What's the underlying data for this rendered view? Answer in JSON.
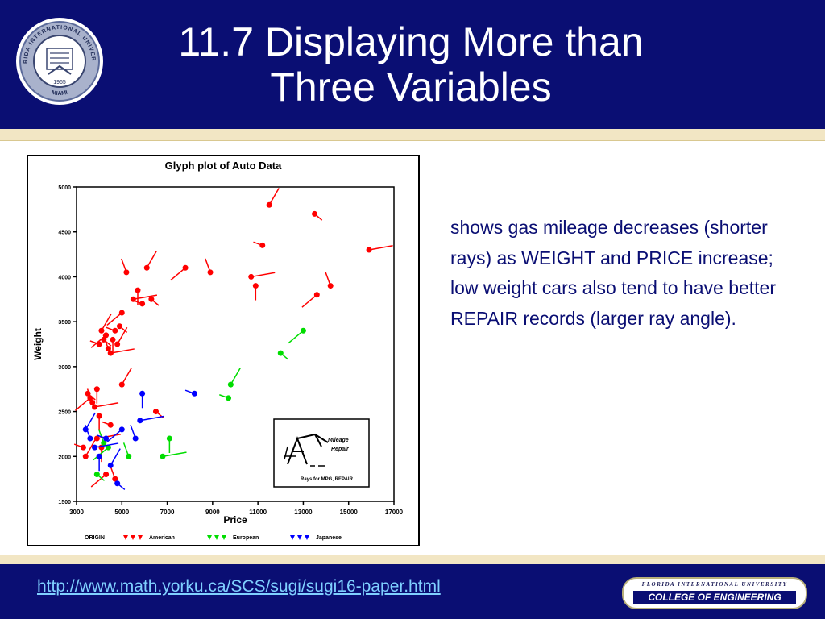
{
  "slide": {
    "title_line1": "11.7 Displaying More than",
    "title_line2": "Three Variables",
    "body_text": "shows gas mileage decreases (shorter rays) as WEIGHT and PRICE increase; low weight cars also tend to have better REPAIR records (larger ray angle).",
    "footer_link": "http://www.math.yorku.ca/SCS/sugi/sugi16-paper.html",
    "footer_logo_university": "FLORIDA INTERNATIONAL UNIVERSITY",
    "footer_logo_college": "COLLEGE OF ENGINEERING",
    "seal_text_top": "FLORIDA INTERNATIONAL UNIVERSITY",
    "seal_text_bottom": "MIAMI",
    "seal_year": "1965"
  },
  "colors": {
    "header_blue": "#0a0e73",
    "accent_cream": "#f2e6c4",
    "link_color": "#7fd0ff",
    "american": "#ff0000",
    "european": "#00dd00",
    "japanese": "#0000ff"
  },
  "chart_data": {
    "type": "scatter",
    "title": "Glyph plot of Auto Data",
    "xlabel": "Price",
    "ylabel": "Weight",
    "xlim": [
      3000,
      17000
    ],
    "ylim": [
      1500,
      5000
    ],
    "x_ticks": [
      3000,
      5000,
      7000,
      9000,
      11000,
      13000,
      15000,
      17000
    ],
    "y_ticks": [
      1500,
      2000,
      2500,
      3000,
      3500,
      4000,
      4500,
      5000
    ],
    "legend_placement": "bottom",
    "legend_label": "ORIGIN",
    "glyph_key": {
      "labels": [
        "Mileage",
        "Repair"
      ],
      "caption": "Rays for MPG, REPAIR"
    },
    "series": [
      {
        "name": "American",
        "color": "#ff0000",
        "points": [
          [
            3300,
            2100
          ],
          [
            3400,
            2000
          ],
          [
            3500,
            2700
          ],
          [
            3600,
            2650
          ],
          [
            3700,
            2600
          ],
          [
            3800,
            2550
          ],
          [
            3900,
            2750
          ],
          [
            4000,
            3250
          ],
          [
            4100,
            3400
          ],
          [
            4200,
            3300
          ],
          [
            4300,
            3350
          ],
          [
            4400,
            3200
          ],
          [
            4500,
            3150
          ],
          [
            4600,
            3300
          ],
          [
            4700,
            3400
          ],
          [
            4800,
            3250
          ],
          [
            4900,
            3450
          ],
          [
            5000,
            3600
          ],
          [
            5200,
            4050
          ],
          [
            5500,
            3750
          ],
          [
            5700,
            3850
          ],
          [
            5900,
            3700
          ],
          [
            6100,
            4100
          ],
          [
            6300,
            3750
          ],
          [
            7800,
            4100
          ],
          [
            8900,
            4050
          ],
          [
            10700,
            4000
          ],
          [
            10900,
            3900
          ],
          [
            11200,
            4350
          ],
          [
            11500,
            4800
          ],
          [
            13500,
            4700
          ],
          [
            13600,
            3800
          ],
          [
            14200,
            3900
          ],
          [
            15900,
            4300
          ],
          [
            4000,
            2450
          ],
          [
            4500,
            2350
          ],
          [
            5000,
            2800
          ],
          [
            6500,
            2500
          ],
          [
            4300,
            1800
          ],
          [
            4700,
            1750
          ],
          [
            3900,
            2200
          ],
          [
            4100,
            2100
          ]
        ]
      },
      {
        "name": "European",
        "color": "#00dd00",
        "points": [
          [
            3900,
            1800
          ],
          [
            4400,
            2100
          ],
          [
            5300,
            2000
          ],
          [
            6800,
            2000
          ],
          [
            7100,
            2200
          ],
          [
            9700,
            2650
          ],
          [
            9800,
            2800
          ],
          [
            12000,
            3150
          ],
          [
            13000,
            3400
          ],
          [
            4200,
            2150
          ]
        ]
      },
      {
        "name": "Japanese",
        "color": "#0000ff",
        "points": [
          [
            3600,
            2200
          ],
          [
            3800,
            2100
          ],
          [
            4000,
            2000
          ],
          [
            4300,
            2200
          ],
          [
            4500,
            1900
          ],
          [
            4800,
            1700
          ],
          [
            5000,
            2300
          ],
          [
            5600,
            2200
          ],
          [
            5800,
            2400
          ],
          [
            5900,
            2700
          ],
          [
            8200,
            2700
          ],
          [
            3400,
            2300
          ]
        ]
      }
    ]
  }
}
